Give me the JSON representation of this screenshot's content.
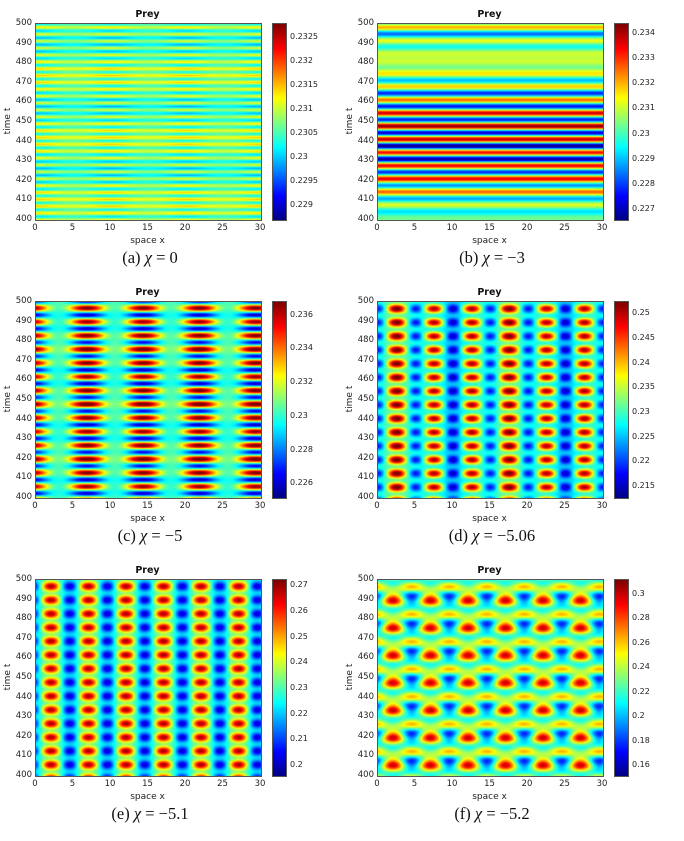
{
  "figure": {
    "panel_title": "Prey",
    "x_axis_label": "space x",
    "y_axis_label": "time t"
  },
  "chart_data": {
    "type": "heatmap",
    "colormap": "jet",
    "x_label": "space x",
    "y_label": "time t",
    "x_range": [
      0,
      30
    ],
    "y_range": [
      400,
      500
    ],
    "x_ticks": [
      0,
      5,
      10,
      15,
      20,
      25,
      30
    ],
    "y_ticks": [
      400,
      410,
      420,
      430,
      440,
      450,
      460,
      470,
      480,
      490,
      500
    ],
    "grid": false,
    "legend_position": "colorbar-right",
    "panels": [
      {
        "title": "Prey",
        "caption_index": "(a) ",
        "caption_chi": "χ",
        "caption_eq": " = 0",
        "clim": [
          0.2287,
          0.2328
        ],
        "colorbar_ticks": [
          0.2325,
          0.232,
          0.2315,
          0.231,
          0.2305,
          0.23,
          0.2295,
          0.229
        ],
        "pattern": {
          "base": 0.2307,
          "terms": [
            {
              "amp": 0.00045,
              "ft": 0.285,
              "pht": 0
            },
            {
              "amp": 0.0002,
              "ft": 0.031,
              "pht": 2.0
            },
            {
              "amp": 0.00015,
              "fx": 0.1,
              "ft": 0.285,
              "pht": 0
            }
          ]
        }
      },
      {
        "title": "Prey",
        "caption_index": "(b) ",
        "caption_chi": "χ",
        "caption_eq": " = −3",
        "clim": [
          0.2266,
          0.2344
        ],
        "colorbar_ticks": [
          0.234,
          0.233,
          0.232,
          0.231,
          0.23,
          0.229,
          0.228,
          0.227
        ],
        "pattern": {
          "base": 0.2305,
          "terms": [
            {
              "amp": 0.0018,
              "ft": 0.1428,
              "pht": 0
            },
            {
              "amp": 0.0017,
              "ft": 0.1548,
              "pht": -1.8
            },
            {
              "amp": 0.0005,
              "ft": 0.033,
              "pht": 1.0
            }
          ]
        }
      },
      {
        "title": "Prey",
        "caption_index": "(c) ",
        "caption_chi": "χ",
        "caption_eq": " = −5",
        "clim": [
          0.2252,
          0.2368
        ],
        "colorbar_ticks": [
          0.236,
          0.234,
          0.232,
          0.23,
          0.228,
          0.226
        ],
        "pattern": {
          "base": 0.231,
          "terms": [
            {
              "amp": 0.0028,
              "ft": 0.1428,
              "pht": 0.3
            },
            {
              "amp": 0.0026,
              "fx": 0.1333,
              "phx": 0.6,
              "ft": 0.1428,
              "pht": 0.3
            },
            {
              "amp": 0.0007,
              "fx": 0.1333,
              "phx": 0.6
            },
            {
              "amp": 0.0004,
              "ft": 0.0357,
              "pht": 0
            }
          ]
        }
      },
      {
        "title": "Prey",
        "caption_index": "(d) ",
        "caption_chi": "χ",
        "caption_eq": " = −5.06",
        "clim": [
          0.2128,
          0.2525
        ],
        "colorbar_ticks": [
          0.25,
          0.245,
          0.24,
          0.235,
          0.23,
          0.225,
          0.22,
          0.215
        ],
        "pattern": {
          "base": 0.2318,
          "terms": [
            {
              "amp": 0.0095,
              "fx": 0.2,
              "phx": 3.1416
            },
            {
              "amp": 0.008,
              "fx": 0.2,
              "phx": 3.1416,
              "ft": 0.1428,
              "pht": 0.6
            },
            {
              "amp": 0.003,
              "ft": 0.1428,
              "pht": 0.6
            },
            {
              "amp": 0.002,
              "fx": 0.0667,
              "phx": -1.0
            }
          ]
        }
      },
      {
        "title": "Prey",
        "caption_index": "(e) ",
        "caption_chi": "χ",
        "caption_eq": " = −5.1",
        "clim": [
          0.196,
          0.2725
        ],
        "colorbar_ticks": [
          0.27,
          0.26,
          0.25,
          0.24,
          0.23,
          0.22,
          0.21,
          0.2
        ],
        "pattern": {
          "base": 0.2325,
          "terms": [
            {
              "amp": 0.021,
              "fx": 0.2,
              "phx": -2.513
            },
            {
              "amp": 0.013,
              "fx": 0.2,
              "phx": -2.513,
              "ft": 0.1428,
              "pht": 0.4
            },
            {
              "amp": 0.0035,
              "ft": 0.1428,
              "pht": 0.4
            }
          ]
        }
      },
      {
        "title": "Prey",
        "caption_index": "(f) ",
        "caption_chi": "χ",
        "caption_eq": " = −5.2",
        "clim": [
          0.152,
          0.312
        ],
        "colorbar_ticks": [
          0.3,
          0.28,
          0.26,
          0.24,
          0.22,
          0.2,
          0.18,
          0.16
        ],
        "pattern": {
          "base": 0.2345,
          "terms": [
            {
              "amp": 0.037,
              "fx": 0.2,
              "phx": -2.513,
              "ft": 0.0714,
              "pht": 0
            },
            {
              "amp": 0.019,
              "fx": 0.2,
              "phx": -2.513
            },
            {
              "amp": 0.014,
              "ft": 0.1428,
              "pht": 1.0
            }
          ]
        }
      }
    ]
  }
}
